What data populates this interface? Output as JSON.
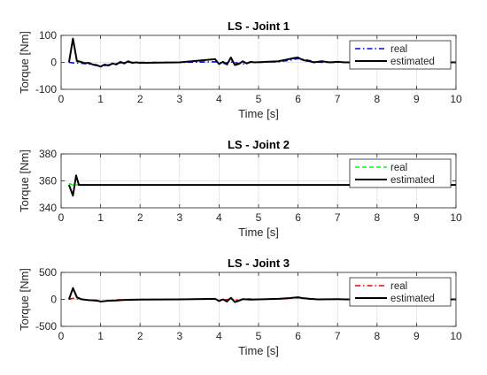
{
  "chart_data": [
    {
      "type": "line",
      "title": "LS - Joint 1",
      "xlabel": "Time [s]",
      "ylabel": "Torque [Nm]",
      "xlim": [
        0,
        10
      ],
      "ylim": [
        -100,
        100
      ],
      "xticks": [
        0,
        1,
        2,
        3,
        4,
        5,
        6,
        7,
        8,
        9,
        10
      ],
      "yticks": [
        -100,
        0,
        100
      ],
      "grid": true,
      "legend_position": "top-right",
      "series": [
        {
          "name": "real",
          "color": "#0000ff",
          "style": "dashdot",
          "points": [
            [
              0.2,
              0
            ],
            [
              0.3,
              -2
            ],
            [
              0.5,
              -3
            ],
            [
              0.7,
              -6
            ],
            [
              0.9,
              -12
            ],
            [
              1.0,
              -16
            ],
            [
              1.1,
              -12
            ],
            [
              1.3,
              -6
            ],
            [
              1.5,
              -2
            ],
            [
              1.7,
              0
            ],
            [
              2.0,
              0
            ],
            [
              3.0,
              0
            ],
            [
              3.9,
              2
            ],
            [
              4.1,
              -5
            ],
            [
              4.3,
              2
            ],
            [
              4.5,
              -4
            ],
            [
              4.6,
              -6
            ],
            [
              4.8,
              0
            ],
            [
              5.0,
              0
            ],
            [
              5.5,
              2
            ],
            [
              5.8,
              8
            ],
            [
              6.0,
              14
            ],
            [
              6.2,
              10
            ],
            [
              6.4,
              2
            ],
            [
              6.6,
              0
            ],
            [
              7.0,
              0
            ],
            [
              8.0,
              0
            ],
            [
              9.0,
              0
            ],
            [
              10.0,
              0
            ]
          ]
        },
        {
          "name": "estimated",
          "color": "#000000",
          "style": "solid",
          "points": [
            [
              0.2,
              0
            ],
            [
              0.3,
              88
            ],
            [
              0.4,
              5
            ],
            [
              0.5,
              2
            ],
            [
              0.6,
              -3
            ],
            [
              0.7,
              -2
            ],
            [
              0.8,
              -8
            ],
            [
              0.9,
              -10
            ],
            [
              1.0,
              -16
            ],
            [
              1.1,
              -8
            ],
            [
              1.2,
              -12
            ],
            [
              1.3,
              -4
            ],
            [
              1.4,
              -8
            ],
            [
              1.5,
              2
            ],
            [
              1.6,
              -4
            ],
            [
              1.7,
              4
            ],
            [
              1.8,
              -2
            ],
            [
              1.9,
              0
            ],
            [
              2.0,
              -2
            ],
            [
              3.0,
              0
            ],
            [
              3.9,
              12
            ],
            [
              4.0,
              -6
            ],
            [
              4.1,
              2
            ],
            [
              4.2,
              -8
            ],
            [
              4.3,
              18
            ],
            [
              4.4,
              -10
            ],
            [
              4.5,
              -6
            ],
            [
              4.6,
              4
            ],
            [
              4.7,
              -4
            ],
            [
              4.8,
              2
            ],
            [
              4.9,
              0
            ],
            [
              5.5,
              4
            ],
            [
              5.7,
              10
            ],
            [
              5.9,
              16
            ],
            [
              6.0,
              18
            ],
            [
              6.1,
              10
            ],
            [
              6.2,
              6
            ],
            [
              6.3,
              4
            ],
            [
              6.4,
              0
            ],
            [
              6.6,
              4
            ],
            [
              6.8,
              0
            ],
            [
              7.0,
              2
            ],
            [
              7.2,
              0
            ],
            [
              10.0,
              0
            ]
          ]
        }
      ]
    },
    {
      "type": "line",
      "title": "LS - Joint 2",
      "xlabel": "Time [s]",
      "ylabel": "Torque [Nm]",
      "xlim": [
        0,
        10
      ],
      "ylim": [
        340,
        380
      ],
      "xticks": [
        0,
        1,
        2,
        3,
        4,
        5,
        6,
        7,
        8,
        9,
        10
      ],
      "yticks": [
        340,
        360,
        380
      ],
      "grid": true,
      "legend_position": "top-right",
      "series": [
        {
          "name": "real",
          "color": "#00ff00",
          "style": "dashed",
          "points": [
            [
              0.2,
              358
            ],
            [
              0.3,
              357
            ],
            [
              0.4,
              357
            ],
            [
              0.5,
              357
            ],
            [
              10.0,
              357
            ]
          ]
        },
        {
          "name": "estimated",
          "color": "#000000",
          "style": "solid",
          "points": [
            [
              0.2,
              357
            ],
            [
              0.3,
              349
            ],
            [
              0.38,
              364
            ],
            [
              0.45,
              357
            ],
            [
              10.0,
              357
            ]
          ]
        }
      ]
    },
    {
      "type": "line",
      "title": "LS - Joint 3",
      "xlabel": "Time [s]",
      "ylabel": "Torque [Nm]",
      "xlim": [
        0,
        10
      ],
      "ylim": [
        -500,
        500
      ],
      "xticks": [
        0,
        1,
        2,
        3,
        4,
        5,
        6,
        7,
        8,
        9,
        10
      ],
      "yticks": [
        -500,
        0,
        500
      ],
      "grid": true,
      "legend_position": "top-right",
      "series": [
        {
          "name": "real",
          "color": "#ff0000",
          "style": "dashdot",
          "points": [
            [
              0.2,
              0
            ],
            [
              0.3,
              20
            ],
            [
              0.4,
              10
            ],
            [
              0.6,
              -10
            ],
            [
              0.8,
              -20
            ],
            [
              1.0,
              -40
            ],
            [
              1.2,
              -25
            ],
            [
              1.4,
              -10
            ],
            [
              1.6,
              -5
            ],
            [
              2.0,
              0
            ],
            [
              3.0,
              0
            ],
            [
              3.9,
              5
            ],
            [
              4.1,
              -15
            ],
            [
              4.3,
              10
            ],
            [
              4.5,
              -20
            ],
            [
              4.7,
              10
            ],
            [
              4.9,
              0
            ],
            [
              5.5,
              5
            ],
            [
              5.8,
              20
            ],
            [
              6.0,
              30
            ],
            [
              6.2,
              15
            ],
            [
              6.4,
              0
            ],
            [
              7.0,
              0
            ],
            [
              10.0,
              0
            ]
          ]
        },
        {
          "name": "estimated",
          "color": "#000000",
          "style": "solid",
          "points": [
            [
              0.2,
              0
            ],
            [
              0.3,
              210
            ],
            [
              0.4,
              40
            ],
            [
              0.5,
              5
            ],
            [
              0.7,
              -15
            ],
            [
              0.9,
              -20
            ],
            [
              1.0,
              -40
            ],
            [
              1.2,
              -25
            ],
            [
              1.4,
              -20
            ],
            [
              1.6,
              -10
            ],
            [
              2.0,
              -5
            ],
            [
              3.0,
              0
            ],
            [
              3.9,
              10
            ],
            [
              4.0,
              -30
            ],
            [
              4.1,
              0
            ],
            [
              4.2,
              -40
            ],
            [
              4.3,
              30
            ],
            [
              4.4,
              -50
            ],
            [
              4.5,
              -25
            ],
            [
              4.6,
              5
            ],
            [
              4.8,
              -5
            ],
            [
              5.0,
              0
            ],
            [
              5.5,
              10
            ],
            [
              5.8,
              25
            ],
            [
              6.0,
              40
            ],
            [
              6.1,
              25
            ],
            [
              6.3,
              10
            ],
            [
              6.5,
              0
            ],
            [
              7.0,
              5
            ],
            [
              7.2,
              0
            ],
            [
              10.0,
              0
            ]
          ]
        }
      ]
    }
  ]
}
